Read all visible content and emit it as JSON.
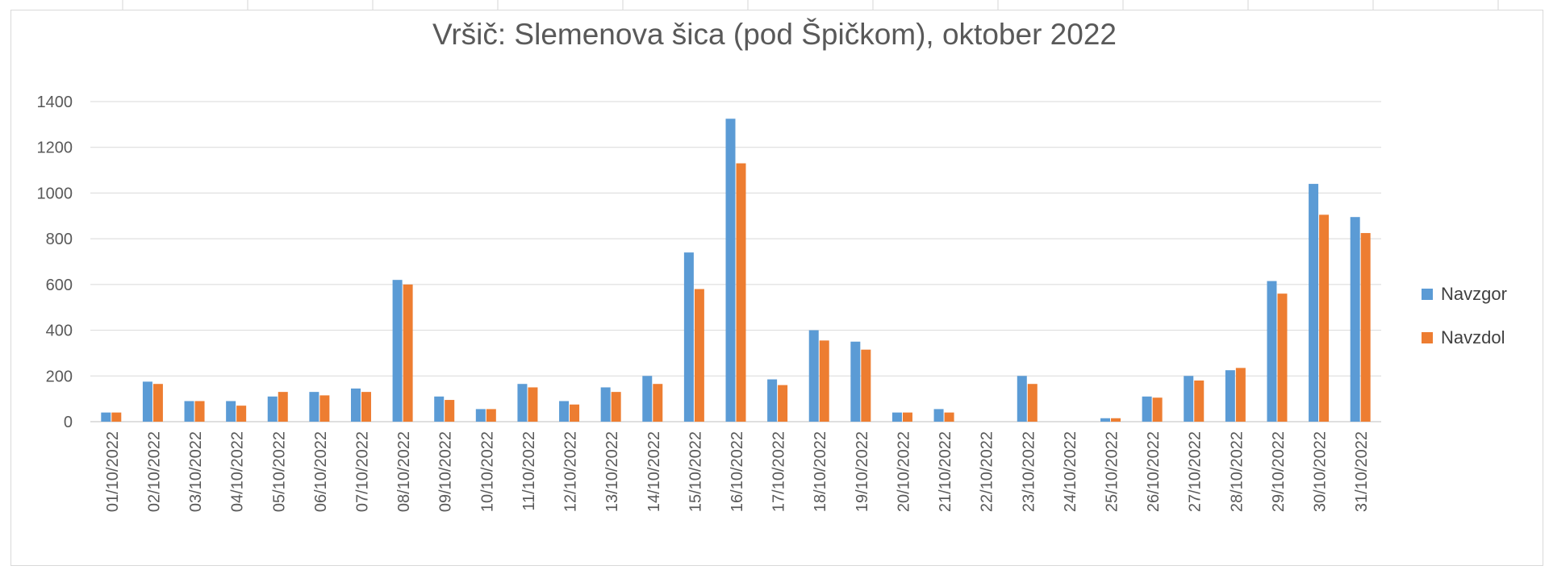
{
  "chart_data": {
    "type": "bar",
    "title": "Vršič: Slemenova šica (pod Špičkom), oktober 2022",
    "xlabel": "",
    "ylabel": "",
    "ylim": [
      0,
      1400
    ],
    "yticks": [
      "0",
      "200",
      "400",
      "600",
      "800",
      "1000",
      "1200",
      "1400"
    ],
    "grid": true,
    "legend_position": "right",
    "categories": [
      "01/10/2022",
      "02/10/2022",
      "03/10/2022",
      "04/10/2022",
      "05/10/2022",
      "06/10/2022",
      "07/10/2022",
      "08/10/2022",
      "09/10/2022",
      "10/10/2022",
      "11/10/2022",
      "12/10/2022",
      "13/10/2022",
      "14/10/2022",
      "15/10/2022",
      "16/10/2022",
      "17/10/2022",
      "18/10/2022",
      "19/10/2022",
      "20/10/2022",
      "21/10/2022",
      "22/10/2022",
      "23/10/2022",
      "24/10/2022",
      "25/10/2022",
      "26/10/2022",
      "27/10/2022",
      "28/10/2022",
      "29/10/2022",
      "30/10/2022",
      "31/10/2022"
    ],
    "series": [
      {
        "name": "Navzgor",
        "color": "#5b9bd5",
        "values": [
          40,
          175,
          90,
          90,
          110,
          130,
          145,
          620,
          110,
          55,
          165,
          90,
          150,
          200,
          740,
          1325,
          185,
          400,
          350,
          40,
          55,
          0,
          200,
          0,
          15,
          110,
          200,
          225,
          615,
          1040,
          895
        ]
      },
      {
        "name": "Navzdol",
        "color": "#ed7d31",
        "values": [
          40,
          165,
          90,
          70,
          130,
          115,
          130,
          600,
          95,
          55,
          150,
          75,
          130,
          165,
          580,
          1130,
          160,
          355,
          315,
          40,
          40,
          0,
          165,
          0,
          15,
          105,
          180,
          235,
          560,
          905,
          825
        ]
      }
    ]
  }
}
